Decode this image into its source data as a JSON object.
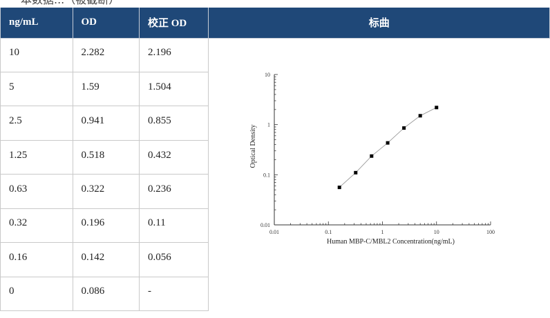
{
  "top_text": "一本数据...（被截断）",
  "table": {
    "headers": [
      "ng/mL",
      "OD",
      "校正 OD",
      "标曲"
    ],
    "rows": [
      [
        "10",
        "2.282",
        "2.196"
      ],
      [
        "5",
        "1.59",
        "1.504"
      ],
      [
        "2.5",
        "0.941",
        "0.855"
      ],
      [
        "1.25",
        "0.518",
        "0.432"
      ],
      [
        "0.63",
        "0.322",
        "0.236"
      ],
      [
        "0.32",
        "0.196",
        "0.11"
      ],
      [
        "0.16",
        "0.142",
        "0.056"
      ],
      [
        "0",
        "0.086",
        "-"
      ]
    ]
  },
  "colors": {
    "header_bg": "#1f4878",
    "header_text": "#ffffff",
    "grid": "#c9c9c9"
  },
  "chart_data": {
    "type": "scatter",
    "xlabel": "Human MBP-C/MBL2 Concentration(ng/mL)",
    "ylabel": "Optical Density",
    "x_scale": "log",
    "y_scale": "log",
    "xlim": [
      0.01,
      100
    ],
    "ylim": [
      0.01,
      10
    ],
    "x_ticks": [
      "0.01",
      "0.1",
      "1",
      "10",
      "100"
    ],
    "y_ticks": [
      "0.01",
      "0.1",
      "1",
      "10"
    ],
    "points": [
      {
        "x": 0.16,
        "y": 0.056
      },
      {
        "x": 0.32,
        "y": 0.11
      },
      {
        "x": 0.63,
        "y": 0.236
      },
      {
        "x": 1.25,
        "y": 0.432
      },
      {
        "x": 2.5,
        "y": 0.855
      },
      {
        "x": 5,
        "y": 1.504
      },
      {
        "x": 10,
        "y": 2.196
      }
    ],
    "fit_line": true,
    "grid": false
  }
}
